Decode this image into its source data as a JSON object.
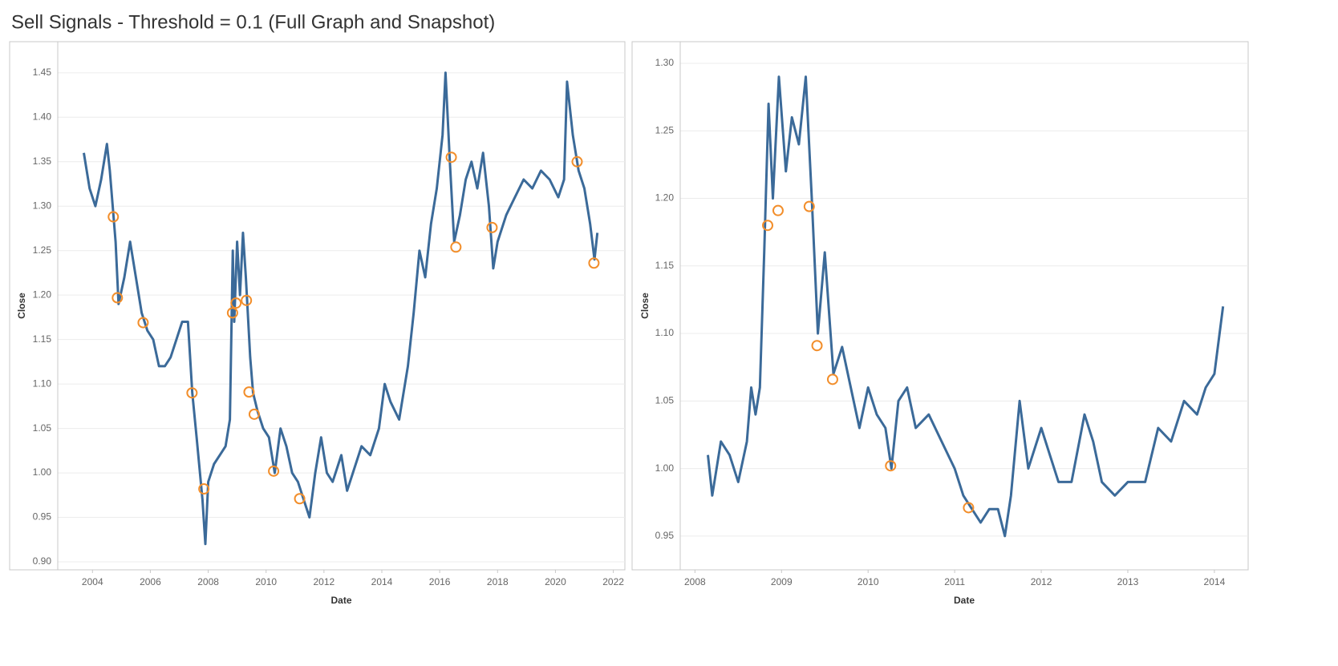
{
  "title": "Sell Signals - Threshold = 0.1 (Full Graph and Snapshot)",
  "chart_data": [
    {
      "type": "line",
      "x_label": "Date",
      "y_label": "Close",
      "xlim": [
        2002.8,
        2022.4
      ],
      "xticks": [
        2004,
        2006,
        2008,
        2010,
        2012,
        2014,
        2016,
        2018,
        2020,
        2022
      ],
      "ylim": [
        0.891,
        1.485
      ],
      "yticks": [
        {
          "value": 0.9,
          "label": "0.90"
        },
        0.95,
        {
          "value": 1.0,
          "label": "1.00"
        },
        1.05,
        {
          "value": 1.1,
          "label": "1.10"
        },
        1.15,
        {
          "value": 1.2,
          "label": "1.20"
        },
        1.25,
        {
          "value": 1.3,
          "label": "1.30"
        },
        1.35,
        {
          "value": 1.4,
          "label": "1.40"
        },
        1.45
      ],
      "grid": true,
      "series": [
        {
          "style": "line",
          "color": "#3b6a99",
          "x": [
            2003.7,
            2003.9,
            2004.1,
            2004.3,
            2004.5,
            2004.6,
            2004.8,
            2004.9,
            2005.1,
            2005.3,
            2005.5,
            2005.7,
            2005.9,
            2006.1,
            2006.3,
            2006.5,
            2006.7,
            2006.9,
            2007.1,
            2007.3,
            2007.45,
            2007.6,
            2007.8,
            2007.9,
            2008.0,
            2008.2,
            2008.4,
            2008.6,
            2008.75,
            2008.85,
            2008.9,
            2009.0,
            2009.1,
            2009.2,
            2009.3,
            2009.45,
            2009.55,
            2009.7,
            2009.9,
            2010.1,
            2010.3,
            2010.5,
            2010.7,
            2010.9,
            2011.1,
            2011.3,
            2011.5,
            2011.7,
            2011.9,
            2012.1,
            2012.3,
            2012.6,
            2012.8,
            2013.0,
            2013.3,
            2013.6,
            2013.9,
            2014.1,
            2014.3,
            2014.6,
            2014.9,
            2015.1,
            2015.3,
            2015.5,
            2015.7,
            2015.9,
            2016.1,
            2016.2,
            2016.35,
            2016.5,
            2016.7,
            2016.9,
            2017.1,
            2017.3,
            2017.5,
            2017.7,
            2017.85,
            2018.0,
            2018.3,
            2018.6,
            2018.9,
            2019.2,
            2019.5,
            2019.8,
            2020.1,
            2020.3,
            2020.4,
            2020.6,
            2020.8,
            2021.0,
            2021.2,
            2021.35,
            2021.45
          ],
          "values": [
            1.36,
            1.32,
            1.3,
            1.33,
            1.37,
            1.34,
            1.26,
            1.19,
            1.22,
            1.26,
            1.22,
            1.18,
            1.16,
            1.15,
            1.12,
            1.12,
            1.13,
            1.15,
            1.17,
            1.17,
            1.09,
            1.04,
            0.97,
            0.92,
            0.99,
            1.01,
            1.02,
            1.03,
            1.06,
            1.25,
            1.17,
            1.26,
            1.2,
            1.27,
            1.22,
            1.13,
            1.09,
            1.07,
            1.05,
            1.04,
            1.0,
            1.05,
            1.03,
            1.0,
            0.99,
            0.97,
            0.95,
            1.0,
            1.04,
            1.0,
            0.99,
            1.02,
            0.98,
            1.0,
            1.03,
            1.02,
            1.05,
            1.1,
            1.08,
            1.06,
            1.12,
            1.18,
            1.25,
            1.22,
            1.28,
            1.32,
            1.38,
            1.45,
            1.35,
            1.26,
            1.29,
            1.33,
            1.35,
            1.32,
            1.36,
            1.3,
            1.23,
            1.26,
            1.29,
            1.31,
            1.33,
            1.32,
            1.34,
            1.33,
            1.31,
            1.33,
            1.44,
            1.38,
            1.34,
            1.32,
            1.28,
            1.24,
            1.27
          ]
        },
        {
          "style": "markers",
          "color": "#f28e2b",
          "x": [
            2004.72,
            2004.86,
            2005.75,
            2007.44,
            2007.85,
            2008.84,
            2008.96,
            2009.32,
            2009.41,
            2009.59,
            2010.26,
            2011.16,
            2016.4,
            2016.56,
            2017.81,
            2020.75,
            2021.33
          ],
          "values": [
            1.288,
            1.197,
            1.169,
            1.09,
            0.982,
            1.18,
            1.191,
            1.194,
            1.091,
            1.066,
            1.002,
            0.971,
            1.355,
            1.254,
            1.276,
            1.35,
            1.236
          ]
        }
      ]
    },
    {
      "type": "line",
      "x_label": "Date",
      "y_label": "Close",
      "xlim": [
        2007.83,
        2014.39
      ],
      "xticks": [
        2008,
        2009,
        2010,
        2011,
        2012,
        2013,
        2014
      ],
      "ylim": [
        0.925,
        1.316
      ],
      "yticks": [
        0.95,
        {
          "value": 1.0,
          "label": "1.00"
        },
        1.05,
        {
          "value": 1.1,
          "label": "1.10"
        },
        1.15,
        {
          "value": 1.2,
          "label": "1.20"
        },
        1.25,
        {
          "value": 1.3,
          "label": "1.30"
        }
      ],
      "grid": true,
      "series": [
        {
          "style": "line",
          "color": "#3b6a99",
          "x": [
            2008.15,
            2008.2,
            2008.3,
            2008.4,
            2008.5,
            2008.6,
            2008.65,
            2008.7,
            2008.75,
            2008.8,
            2008.85,
            2008.9,
            2008.97,
            2009.05,
            2009.12,
            2009.2,
            2009.28,
            2009.35,
            2009.42,
            2009.5,
            2009.6,
            2009.7,
            2009.8,
            2009.9,
            2010.0,
            2010.1,
            2010.2,
            2010.27,
            2010.35,
            2010.45,
            2010.55,
            2010.7,
            2010.85,
            2011.0,
            2011.1,
            2011.2,
            2011.3,
            2011.4,
            2011.5,
            2011.58,
            2011.65,
            2011.75,
            2011.85,
            2012.0,
            2012.1,
            2012.2,
            2012.35,
            2012.5,
            2012.6,
            2012.7,
            2012.85,
            2013.0,
            2013.2,
            2013.35,
            2013.5,
            2013.65,
            2013.8,
            2013.9,
            2014.0,
            2014.1
          ],
          "values": [
            1.01,
            0.98,
            1.02,
            1.01,
            0.99,
            1.02,
            1.06,
            1.04,
            1.06,
            1.16,
            1.27,
            1.2,
            1.29,
            1.22,
            1.26,
            1.24,
            1.29,
            1.2,
            1.1,
            1.16,
            1.07,
            1.09,
            1.06,
            1.03,
            1.06,
            1.04,
            1.03,
            1.0,
            1.05,
            1.06,
            1.03,
            1.04,
            1.02,
            1.0,
            0.98,
            0.97,
            0.96,
            0.97,
            0.97,
            0.95,
            0.98,
            1.05,
            1.0,
            1.03,
            1.01,
            0.99,
            0.99,
            1.04,
            1.02,
            0.99,
            0.98,
            0.99,
            0.99,
            1.03,
            1.02,
            1.05,
            1.04,
            1.06,
            1.07,
            1.12
          ]
        },
        {
          "style": "markers",
          "color": "#f28e2b",
          "x": [
            2008.84,
            2008.96,
            2009.32,
            2009.41,
            2009.59,
            2010.26,
            2011.16
          ],
          "values": [
            1.18,
            1.191,
            1.194,
            1.091,
            1.066,
            1.002,
            0.971
          ]
        }
      ]
    }
  ]
}
